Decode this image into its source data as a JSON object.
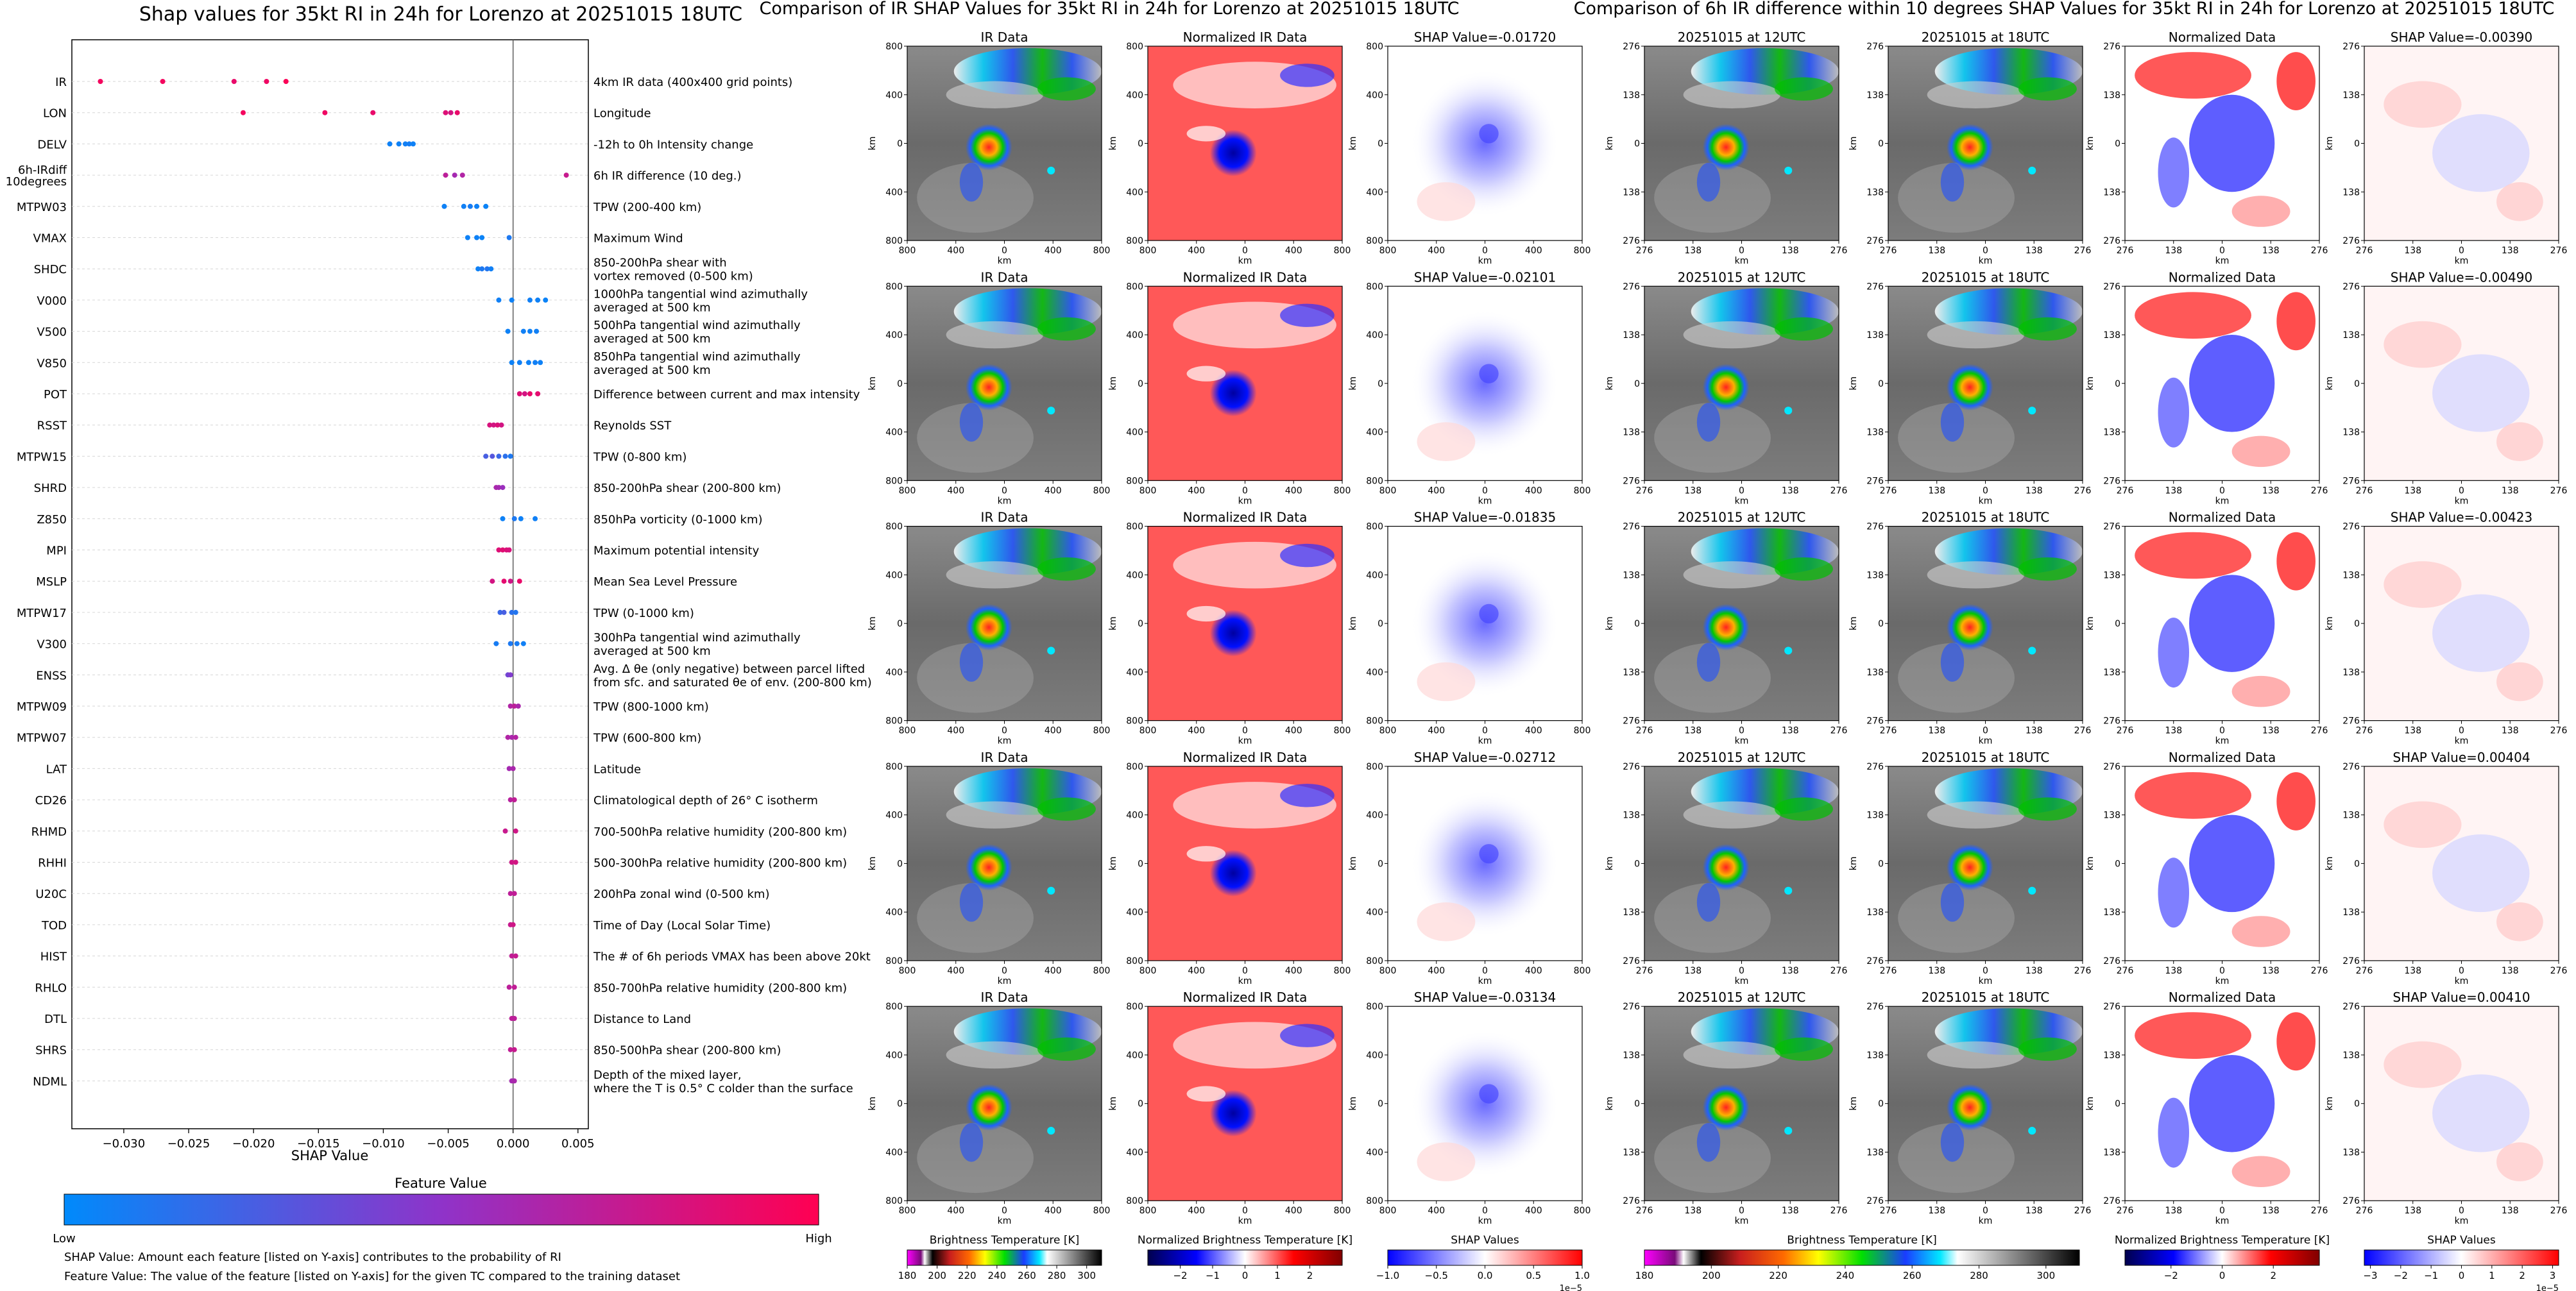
{
  "figure": {
    "left_title": "Shap values for 35kt RI in 24h for Lorenzo at 20251015 18UTC",
    "middle_title": "Comparison of IR SHAP Values for 35kt RI in 24h for Lorenzo at 20251015 18UTC",
    "right_title": "Comparison of 6h IR difference within 10 degrees SHAP Values for 35kt RI in 24h for Lorenzo at 20251015 18UTC"
  },
  "chart_data": [
    {
      "type": "scatter",
      "title": "Shap values for 35kt RI in 24h for Lorenzo at 20251015 18UTC",
      "xlabel": "SHAP Value",
      "xlim": [
        -0.034,
        0.0058
      ],
      "xticks": [
        -0.03,
        -0.025,
        -0.02,
        -0.015,
        -0.01,
        -0.005,
        0.0,
        0.005
      ],
      "xtick_labels": [
        "−0.030",
        "−0.025",
        "−0.020",
        "−0.015",
        "−0.010",
        "−0.005",
        "0.000",
        "0.005"
      ],
      "grid": "horizontal dashed",
      "colorbar": {
        "label": "Feature Value",
        "low": "Low",
        "high": "High",
        "colors": [
          "#008afb",
          "#8f33c9",
          "#ff0052"
        ]
      },
      "features": [
        {
          "name": "IR",
          "desc": "4km IR data (400x400 grid points)",
          "points": [
            [
              -0.0318,
              0.95
            ],
            [
              -0.027,
              0.95
            ],
            [
              -0.0215,
              0.9
            ],
            [
              -0.019,
              0.93
            ],
            [
              -0.0175,
              0.98
            ]
          ]
        },
        {
          "name": "LON",
          "desc": "Longitude",
          "points": [
            [
              -0.0208,
              0.95
            ],
            [
              -0.0145,
              0.93
            ],
            [
              -0.0108,
              0.9
            ],
            [
              -0.0052,
              0.85
            ],
            [
              -0.0048,
              0.8
            ],
            [
              -0.0043,
              0.9
            ]
          ]
        },
        {
          "name": "DELV",
          "desc": "-12h to 0h Intensity change",
          "points": [
            [
              -0.0095,
              0.05
            ],
            [
              -0.0088,
              0.05
            ],
            [
              -0.0083,
              0.06
            ],
            [
              -0.008,
              0.07
            ],
            [
              -0.0077,
              0.05
            ]
          ]
        },
        {
          "name": "6h-IRdiff\n10degrees",
          "desc": "6h IR difference (10 deg.)",
          "points": [
            [
              -0.0052,
              0.7
            ],
            [
              -0.0045,
              0.6
            ],
            [
              -0.0039,
              0.65
            ],
            [
              0.0041,
              0.75
            ]
          ]
        },
        {
          "name": "MTPW03",
          "desc": "TPW (200-400 km)",
          "points": [
            [
              -0.0053,
              0.05
            ],
            [
              -0.0038,
              0.06
            ],
            [
              -0.0033,
              0.08
            ],
            [
              -0.0028,
              0.05
            ],
            [
              -0.0021,
              0.04
            ]
          ]
        },
        {
          "name": "VMAX",
          "desc": "Maximum Wind",
          "points": [
            [
              -0.0035,
              0.05
            ],
            [
              -0.0028,
              0.05
            ],
            [
              -0.0024,
              0.04
            ],
            [
              -0.0003,
              0.1
            ]
          ]
        },
        {
          "name": "SHDC",
          "desc": "850-200hPa shear with\nvortex removed (0-500 km)",
          "points": [
            [
              -0.0027,
              0.05
            ],
            [
              -0.0024,
              0.1
            ],
            [
              -0.002,
              0.12
            ],
            [
              -0.0017,
              0.06
            ]
          ]
        },
        {
          "name": "V000",
          "desc": "1000hPa tangential wind azimuthally\naveraged at 500 km",
          "points": [
            [
              -0.0011,
              0.06
            ],
            [
              -0.0001,
              0.05
            ],
            [
              0.0013,
              0.06
            ],
            [
              0.0019,
              0.05
            ],
            [
              0.0025,
              0.04
            ]
          ]
        },
        {
          "name": "V500",
          "desc": "500hPa tangential wind azimuthally\naveraged at 500 km",
          "points": [
            [
              -0.0004,
              0.05
            ],
            [
              0.0008,
              0.06
            ],
            [
              0.0013,
              0.05
            ],
            [
              0.0018,
              0.06
            ]
          ]
        },
        {
          "name": "V850",
          "desc": "850hPa tangential wind azimuthally\naveraged at 500 km",
          "points": [
            [
              -0.0001,
              0.05
            ],
            [
              0.0005,
              0.06
            ],
            [
              0.0012,
              0.05
            ],
            [
              0.0017,
              0.06
            ],
            [
              0.0021,
              0.05
            ]
          ]
        },
        {
          "name": "POT",
          "desc": "Difference between current and max intensity",
          "points": [
            [
              0.0005,
              0.85
            ],
            [
              0.0009,
              0.8
            ],
            [
              0.0013,
              0.9
            ],
            [
              0.0019,
              0.88
            ]
          ]
        },
        {
          "name": "RSST",
          "desc": "Reynolds SST",
          "points": [
            [
              -0.0018,
              0.82
            ],
            [
              -0.0015,
              0.8
            ],
            [
              -0.0012,
              0.84
            ],
            [
              -0.0009,
              0.8
            ]
          ]
        },
        {
          "name": "MTPW15",
          "desc": "TPW (0-800 km)",
          "points": [
            [
              -0.0021,
              0.25
            ],
            [
              -0.0016,
              0.3
            ],
            [
              -0.0011,
              0.2
            ],
            [
              -0.0006,
              0.15
            ],
            [
              -0.0002,
              0.1
            ]
          ]
        },
        {
          "name": "SHRD",
          "desc": "850-200hPa shear (200-800 km)",
          "points": [
            [
              -0.0013,
              0.62
            ],
            [
              -0.0011,
              0.6
            ],
            [
              -0.0008,
              0.55
            ]
          ]
        },
        {
          "name": "Z850",
          "desc": "850hPa vorticity (0-1000 km)",
          "points": [
            [
              -0.0008,
              0.05
            ],
            [
              0.0001,
              0.1
            ],
            [
              0.0006,
              0.05
            ],
            [
              0.0017,
              0.06
            ]
          ]
        },
        {
          "name": "MPI",
          "desc": "Maximum potential intensity",
          "points": [
            [
              -0.0011,
              0.85
            ],
            [
              -0.0008,
              0.86
            ],
            [
              -0.0005,
              0.84
            ],
            [
              -0.0003,
              0.82
            ]
          ]
        },
        {
          "name": "MSLP",
          "desc": "Mean Sea Level Pressure",
          "points": [
            [
              -0.0016,
              0.8
            ],
            [
              -0.0007,
              0.88
            ],
            [
              -0.0002,
              0.78
            ],
            [
              0.0005,
              0.9
            ]
          ]
        },
        {
          "name": "MTPW17",
          "desc": "TPW (0-1000 km)",
          "points": [
            [
              -0.001,
              0.2
            ],
            [
              -0.0007,
              0.25
            ],
            [
              -0.0001,
              0.15
            ],
            [
              0.0002,
              0.12
            ]
          ]
        },
        {
          "name": "V300",
          "desc": "300hPa tangential wind azimuthally\naveraged at 500 km",
          "points": [
            [
              -0.0013,
              0.08
            ],
            [
              -0.0002,
              0.1
            ],
            [
              0.0003,
              0.08
            ],
            [
              0.0008,
              0.06
            ]
          ]
        },
        {
          "name": "ENSS",
          "desc": "Avg. Δ θe (only negative) between parcel lifted\nfrom sfc. and saturated θe of env. (200-800 km)",
          "points": [
            [
              -0.0004,
              0.4
            ],
            [
              -0.0002,
              0.45
            ]
          ]
        },
        {
          "name": "MTPW09",
          "desc": "TPW (800-1000 km)",
          "points": [
            [
              -0.0002,
              0.65
            ],
            [
              0.0001,
              0.7
            ],
            [
              0.0004,
              0.62
            ]
          ]
        },
        {
          "name": "MTPW07",
          "desc": "TPW (600-800 km)",
          "points": [
            [
              -0.0004,
              0.65
            ],
            [
              -0.0001,
              0.62
            ],
            [
              0.0002,
              0.66
            ]
          ]
        },
        {
          "name": "LAT",
          "desc": "Latitude",
          "points": [
            [
              -0.0003,
              0.6
            ],
            [
              0.0,
              0.62
            ]
          ]
        },
        {
          "name": "CD26",
          "desc": "Climatological depth of 26° C isotherm",
          "points": [
            [
              -0.0002,
              0.68
            ],
            [
              0.0001,
              0.72
            ]
          ]
        },
        {
          "name": "RHMD",
          "desc": "700-500hPa relative humidity (200-800 km)",
          "points": [
            [
              -0.0006,
              0.75
            ],
            [
              0.0002,
              0.78
            ]
          ]
        },
        {
          "name": "RHHI",
          "desc": "500-300hPa relative humidity (200-800 km)",
          "points": [
            [
              -0.0001,
              0.78
            ],
            [
              0.0002,
              0.8
            ]
          ]
        },
        {
          "name": "U20C",
          "desc": "200hPa zonal wind (0-500 km)",
          "points": [
            [
              -0.0002,
              0.7
            ],
            [
              0.0001,
              0.72
            ]
          ]
        },
        {
          "name": "TOD",
          "desc": "Time of Day (Local Solar Time)",
          "points": [
            [
              -0.0002,
              0.75
            ],
            [
              0.0,
              0.78
            ]
          ]
        },
        {
          "name": "HIST",
          "desc": "The # of 6h periods VMAX has been above 20kt",
          "points": [
            [
              -0.0001,
              0.72
            ],
            [
              0.0002,
              0.74
            ]
          ]
        },
        {
          "name": "RHLO",
          "desc": "850-700hPa relative humidity (200-800 km)",
          "points": [
            [
              -0.0003,
              0.7
            ],
            [
              0.0001,
              0.72
            ]
          ]
        },
        {
          "name": "DTL",
          "desc": "Distance to Land",
          "points": [
            [
              -0.0001,
              0.7
            ],
            [
              0.0001,
              0.7
            ]
          ]
        },
        {
          "name": "SHRS",
          "desc": "850-500hPa shear (200-800 km)",
          "points": [
            [
              -0.0002,
              0.72
            ],
            [
              0.0001,
              0.75
            ]
          ]
        },
        {
          "name": "NDML",
          "desc": "Depth of the mixed layer,\nwhere the T is 0.5° C colder than the surface",
          "points": [
            [
              -0.0001,
              0.6
            ],
            [
              0.0001,
              0.62
            ]
          ]
        }
      ]
    },
    {
      "type": "heatmap",
      "title": "Comparison of IR SHAP Values for 35kt RI in 24h for Lorenzo at 20251015 18UTC",
      "column_titles": [
        "IR Data",
        "Normalized IR Data",
        "SHAP"
      ],
      "shap_values": [
        "SHAP Value=-0.01720",
        "SHAP Value=-0.02101",
        "SHAP Value=-0.01835",
        "SHAP Value=-0.02712",
        "SHAP Value=-0.03134"
      ],
      "axis_label": "km",
      "ticks": [
        "800",
        "400",
        "0",
        "400",
        "800"
      ],
      "colorbars": [
        {
          "label": "Brightness Temperature [K]",
          "ticks": [
            "180",
            "200",
            "220",
            "240",
            "260",
            "280",
            "300"
          ],
          "vmin": 180,
          "vmax": 310
        },
        {
          "label": "Normalized Brightness Temperature [K]",
          "ticks": [
            "−2",
            "−1",
            "0",
            "1",
            "2"
          ],
          "vmin": -3,
          "vmax": 3
        },
        {
          "label": "SHAP Values",
          "ticks": [
            "−1.0",
            "−0.5",
            "0.0",
            "0.5",
            "1.0"
          ],
          "vmin": -1.0,
          "vmax": 1.0,
          "exponent": "1e−5"
        }
      ]
    },
    {
      "type": "heatmap",
      "title": "Comparison of 6h IR difference within 10 degrees SHAP Values for 35kt RI in 24h for Lorenzo at 20251015 18UTC",
      "column_titles": [
        "20251015 at 12UTC",
        "20251015 at 18UTC",
        "Normalized Data",
        "SHAP"
      ],
      "shap_values": [
        "SHAP Value=-0.00390",
        "SHAP Value=-0.00490",
        "SHAP Value=-0.00423",
        "SHAP Value=0.00404",
        "SHAP Value=0.00410"
      ],
      "axis_label": "km",
      "ticks": [
        "276",
        "138",
        "0",
        "138",
        "276"
      ],
      "colorbars": [
        {
          "label": "Brightness Temperature [K]",
          "ticks": [
            "180",
            "200",
            "220",
            "240",
            "260",
            "280",
            "300"
          ],
          "vmin": 180,
          "vmax": 310
        },
        {
          "label": "Normalized Brightness Temperature [K]",
          "ticks": [
            "−2",
            "0",
            "2"
          ],
          "vmin": -3.8,
          "vmax": 3.8
        },
        {
          "label": "SHAP Values",
          "ticks": [
            "−3",
            "−2",
            "−1",
            "0",
            "1",
            "2",
            "3"
          ],
          "vmin": -3.2,
          "vmax": 3.2,
          "exponent": "1e−5"
        }
      ]
    }
  ],
  "notes": {
    "line1": "SHAP Value: Amount each feature [listed on Y-axis] contributes to the probability of RI",
    "line2": "Feature Value: The value of the feature [listed on Y-axis] for the given TC compared to the training dataset"
  }
}
